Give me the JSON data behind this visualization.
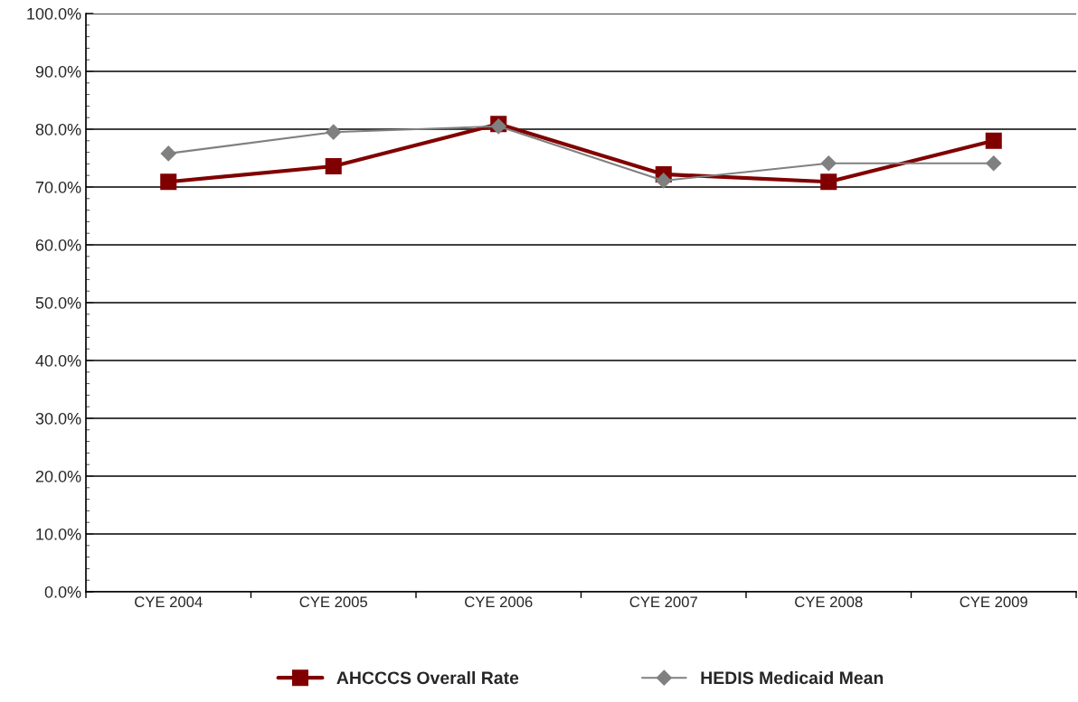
{
  "chart_data": {
    "type": "line",
    "categories": [
      "CYE 2004",
      "CYE 2005",
      "CYE 2006",
      "CYE 2007",
      "CYE 2008",
      "CYE 2009"
    ],
    "series": [
      {
        "name": "AHCCCS Overall Rate",
        "color": "#800000",
        "marker": "square",
        "values": [
          70.9,
          73.6,
          80.9,
          72.2,
          70.9,
          78.0
        ]
      },
      {
        "name": "HEDIS Medicaid Mean",
        "color": "#808080",
        "marker": "diamond",
        "values": [
          75.8,
          79.5,
          80.5,
          71.1,
          74.1,
          74.1
        ]
      }
    ],
    "ylim": [
      0,
      100
    ],
    "yticks": [
      {
        "value": 0,
        "label": "0.0%"
      },
      {
        "value": 10,
        "label": "10.0%"
      },
      {
        "value": 20,
        "label": "20.0%"
      },
      {
        "value": 30,
        "label": "30.0%"
      },
      {
        "value": 40,
        "label": "40.0%"
      },
      {
        "value": 50,
        "label": "50.0%"
      },
      {
        "value": 60,
        "label": "60.0%"
      },
      {
        "value": 70,
        "label": "70.0%"
      },
      {
        "value": 80,
        "label": "80.0%"
      },
      {
        "value": 90,
        "label": "90.0%"
      },
      {
        "value": 100,
        "label": "100.0%"
      }
    ],
    "grid": "y",
    "legend": "bottom",
    "line_style": "solid"
  }
}
